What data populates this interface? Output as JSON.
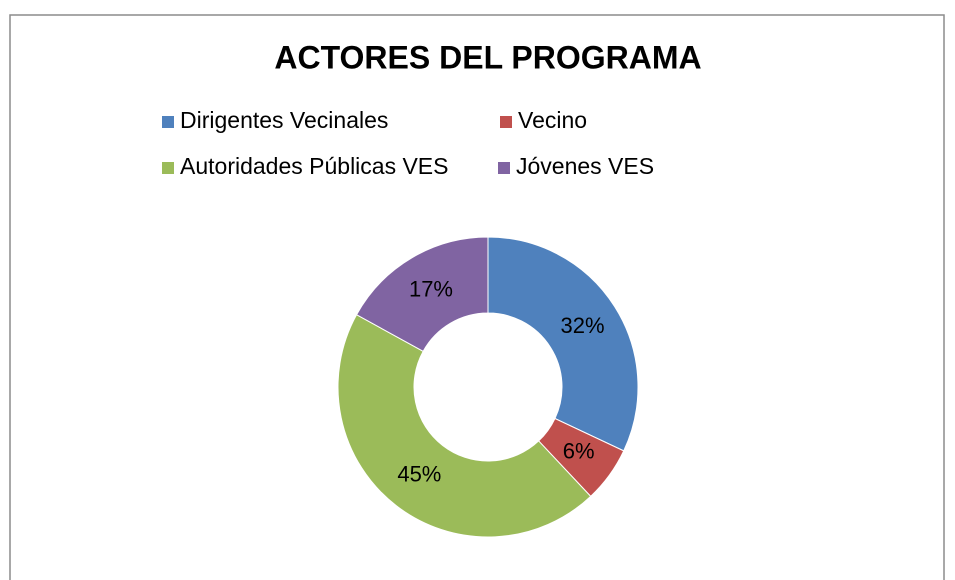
{
  "chart_data": {
    "type": "donut",
    "title": "ACTORES DEL PROGRAMA",
    "categories": [
      "Dirigentes Vecinales",
      "Vecino",
      "Autoridades Públicas VES",
      "Jóvenes VES"
    ],
    "values": [
      32,
      6,
      45,
      17
    ],
    "value_labels": [
      "32%",
      "6%",
      "45%",
      "17%"
    ],
    "colors": [
      "#4f81bd",
      "#c0504d",
      "#9bbb59",
      "#8064a2"
    ],
    "legend": "top"
  }
}
